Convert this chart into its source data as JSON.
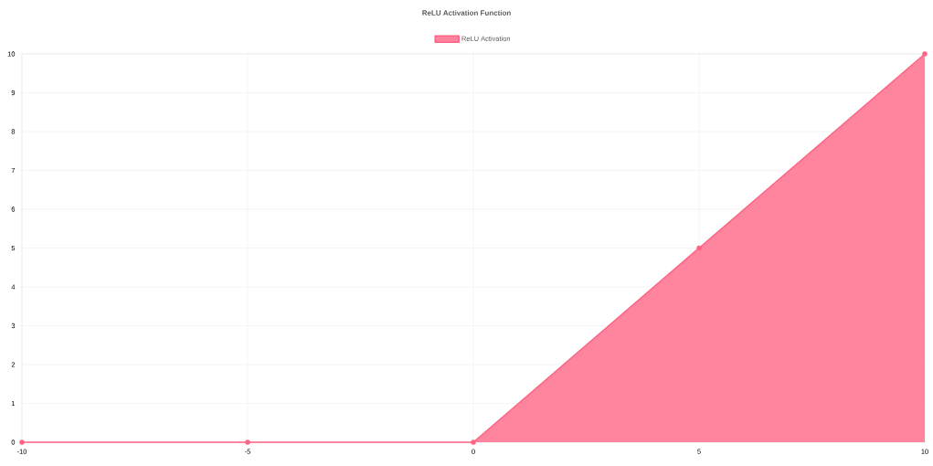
{
  "chart_data": {
    "type": "area",
    "title": "ReLU Activation Function",
    "x": [
      -10,
      -5,
      0,
      5,
      10
    ],
    "series": [
      {
        "name": "ReLU Activation",
        "color": "#ff6384",
        "values": [
          0,
          0,
          0,
          5,
          10
        ]
      }
    ],
    "xlim": [
      -10,
      10
    ],
    "xticks": [
      -10,
      -5,
      0,
      5,
      10
    ],
    "ylim": [
      0,
      10
    ],
    "yticks": [
      0,
      1,
      2,
      3,
      4,
      5,
      6,
      7,
      8,
      9,
      10
    ],
    "grid": true,
    "legend": "top",
    "marker": "circle"
  }
}
